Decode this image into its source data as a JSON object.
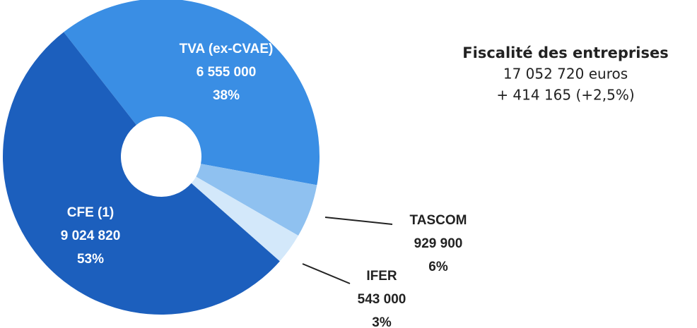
{
  "chart_data": {
    "type": "donut",
    "title": "Fiscalité des entreprises",
    "subtitle": "17 052 720 euros",
    "annotation": "+ 414 165 (+2,5%)",
    "categories": [
      "TVA (ex-CVAE)",
      "TASCOM",
      "IFER",
      "CFE (1)"
    ],
    "values": [
      6555000,
      929900,
      543000,
      9024820
    ],
    "value_labels": [
      "6 555 000",
      "929 900",
      "543 000",
      "9 024 820"
    ],
    "percentages": [
      38,
      6,
      3,
      53
    ],
    "percentage_labels": [
      "38%",
      "6%",
      "3%",
      "53%"
    ],
    "colors": [
      "#3a8ee4",
      "#8fc1f0",
      "#d3e8fa",
      "#1c5fbd"
    ]
  }
}
